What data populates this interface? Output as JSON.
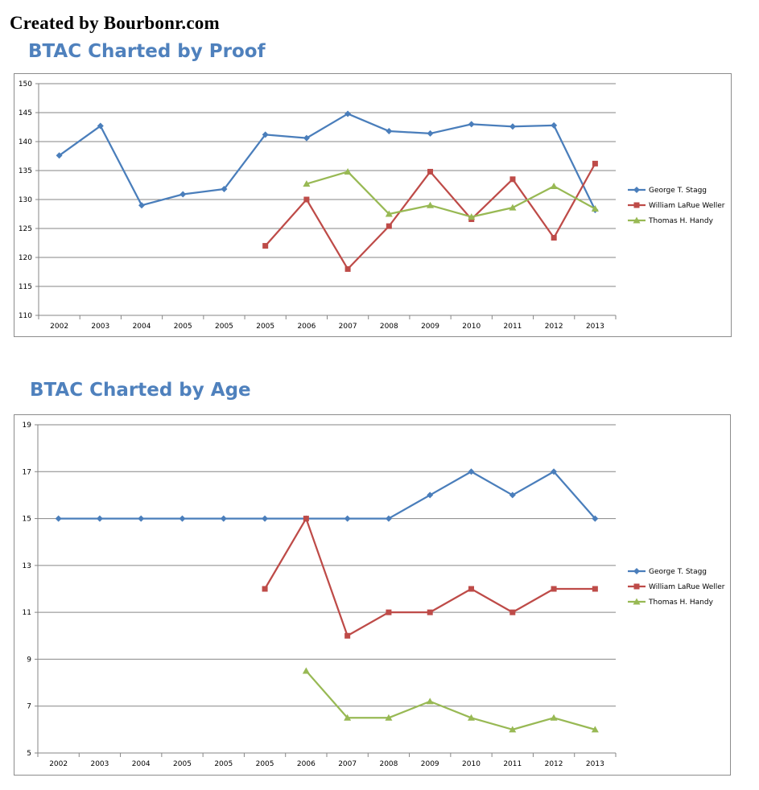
{
  "header": {
    "credit": "Created by Bourbonr.com"
  },
  "charts": {
    "proof": {
      "title": "BTAC Charted by Proof"
    },
    "age": {
      "title": "BTAC Charted by Age"
    }
  },
  "colors": {
    "title": "#4f81bd",
    "stagg": "#4a7ebb",
    "weller": "#be4b48",
    "handy": "#98b954",
    "grid": "#868686"
  },
  "chart_data": [
    {
      "type": "line",
      "title": "BTAC Charted by Proof",
      "categories": [
        "2002",
        "2003",
        "2004",
        "2005",
        "2005",
        "2005",
        "2006",
        "2007",
        "2008",
        "2009",
        "2010",
        "2011",
        "2012",
        "2013"
      ],
      "ylim": [
        110,
        150
      ],
      "yticks": [
        110,
        115,
        120,
        125,
        130,
        135,
        140,
        145,
        150
      ],
      "grid": true,
      "legend_position": "right",
      "series": [
        {
          "name": "George T. Stagg",
          "marker": "diamond",
          "values": [
            137.6,
            142.7,
            129.0,
            130.9,
            131.8,
            141.2,
            140.6,
            144.8,
            141.8,
            141.4,
            143.0,
            142.6,
            142.8,
            128.2
          ]
        },
        {
          "name": "William LaRue Weller",
          "marker": "square",
          "values": [
            null,
            null,
            null,
            null,
            null,
            122.0,
            130.0,
            118.0,
            125.4,
            134.8,
            126.6,
            133.5,
            123.4,
            136.2
          ]
        },
        {
          "name": "Thomas H. Handy",
          "marker": "triangle",
          "values": [
            null,
            null,
            null,
            null,
            null,
            null,
            132.7,
            134.8,
            127.5,
            129.0,
            127.0,
            128.6,
            132.3,
            128.4
          ]
        }
      ]
    },
    {
      "type": "line",
      "title": "BTAC Charted by Age",
      "categories": [
        "2002",
        "2003",
        "2004",
        "2005",
        "2005",
        "2005",
        "2006",
        "2007",
        "2008",
        "2009",
        "2010",
        "2011",
        "2012",
        "2013"
      ],
      "ylim": [
        5,
        19
      ],
      "yticks": [
        5,
        7,
        9,
        11,
        13,
        15,
        17,
        19
      ],
      "grid": true,
      "legend_position": "right",
      "series": [
        {
          "name": "George T. Stagg",
          "marker": "diamond",
          "values": [
            15,
            15,
            15,
            15,
            15,
            15,
            15,
            15,
            15,
            16,
            17,
            16,
            17,
            15
          ]
        },
        {
          "name": "William LaRue Weller",
          "marker": "square",
          "values": [
            null,
            null,
            null,
            null,
            null,
            12,
            15,
            10,
            11,
            11,
            12,
            11,
            12,
            12
          ]
        },
        {
          "name": "Thomas H. Handy",
          "marker": "triangle",
          "values": [
            null,
            null,
            null,
            null,
            null,
            null,
            8.5,
            6.5,
            6.5,
            7.2,
            6.5,
            6,
            6.5,
            6
          ]
        }
      ]
    }
  ]
}
